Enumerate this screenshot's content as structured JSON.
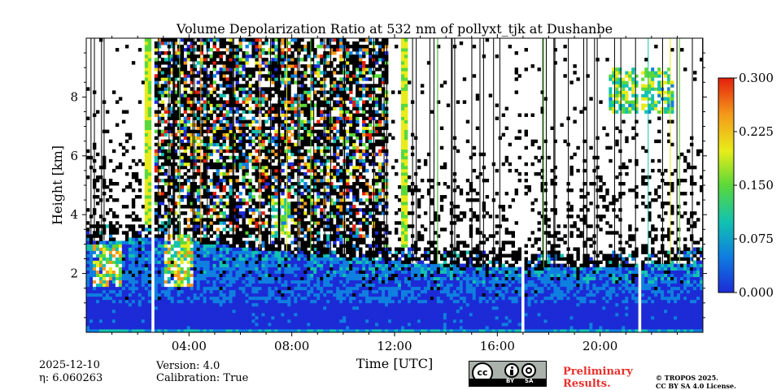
{
  "chart_data": {
    "type": "heatmap",
    "title": "Volume Depolarization Ratio at 532 nm of pollyxt_tjk at Dushanbe",
    "xlabel": "Time [UTC]",
    "ylabel": "Height [km]",
    "xlim_hours": [
      0,
      24
    ],
    "ylim_km": [
      0,
      10
    ],
    "x_ticks": [
      {
        "hour": 4,
        "label": "04:00"
      },
      {
        "hour": 8,
        "label": "08:00"
      },
      {
        "hour": 12,
        "label": "12:00"
      },
      {
        "hour": 16,
        "label": "16:00"
      },
      {
        "hour": 20,
        "label": "20:00"
      }
    ],
    "y_ticks": [
      {
        "km": 2,
        "label": "2"
      },
      {
        "km": 4,
        "label": "4"
      },
      {
        "km": 6,
        "label": "6"
      },
      {
        "km": 8,
        "label": "8"
      }
    ],
    "colorbar": {
      "range": [
        0,
        0.3
      ],
      "ticks": [
        {
          "value": 0.0,
          "label": "0.000"
        },
        {
          "value": 0.075,
          "label": "0.075"
        },
        {
          "value": 0.15,
          "label": "0.150"
        },
        {
          "value": 0.225,
          "label": "0.225"
        },
        {
          "value": 0.3,
          "label": "0.300"
        }
      ],
      "colormap": [
        "#1c2bd6",
        "#0f7fe0",
        "#12c2b0",
        "#5ad83a",
        "#e8ec1a",
        "#f49a1a",
        "#e4200c"
      ]
    },
    "features": {
      "data_gaps_hours": [
        2.55,
        17.0,
        21.55
      ],
      "aerosol_layer_top_km": [
        [
          0.0,
          3.1
        ],
        [
          2.5,
          3.2
        ],
        [
          4.0,
          3.1
        ],
        [
          6.0,
          2.9
        ],
        [
          8.0,
          2.7
        ],
        [
          10.0,
          2.6
        ],
        [
          12.0,
          2.4
        ],
        [
          16.0,
          2.2
        ],
        [
          20.0,
          2.2
        ],
        [
          24.0,
          2.4
        ]
      ],
      "high_depol_patches": [
        {
          "hour_range": [
            0.3,
            1.4
          ],
          "km_range": [
            1.6,
            3.0
          ],
          "peak_value": 0.25
        },
        {
          "hour_range": [
            3.0,
            4.2
          ],
          "km_range": [
            1.6,
            3.3
          ],
          "peak_value": 0.25
        },
        {
          "hour_range": [
            7.2,
            8.0
          ],
          "km_range": [
            3.2,
            4.5
          ],
          "peak_value": 0.2
        },
        {
          "hour_range": [
            20.4,
            22.8
          ],
          "km_range": [
            7.4,
            9.0
          ],
          "peak_value": 0.2
        }
      ],
      "noise_region_hours": [
        2.7,
        11.8
      ],
      "cloud_columns_hours": [
        2.3,
        2.45,
        12.35,
        12.45
      ]
    }
  },
  "info": {
    "date": "2025-12-10",
    "eta": "η: 6.060263",
    "version": "Version: 4.0",
    "calibration": "Calibration: True"
  },
  "license_badge": {
    "cc": "cc",
    "by": "BY",
    "sa": "SA"
  },
  "preliminary": {
    "line1": "Preliminary",
    "line2": "Results."
  },
  "copyright": {
    "line1": "© TROPOS 2025.",
    "line2": "CC BY SA 4.0 License."
  }
}
